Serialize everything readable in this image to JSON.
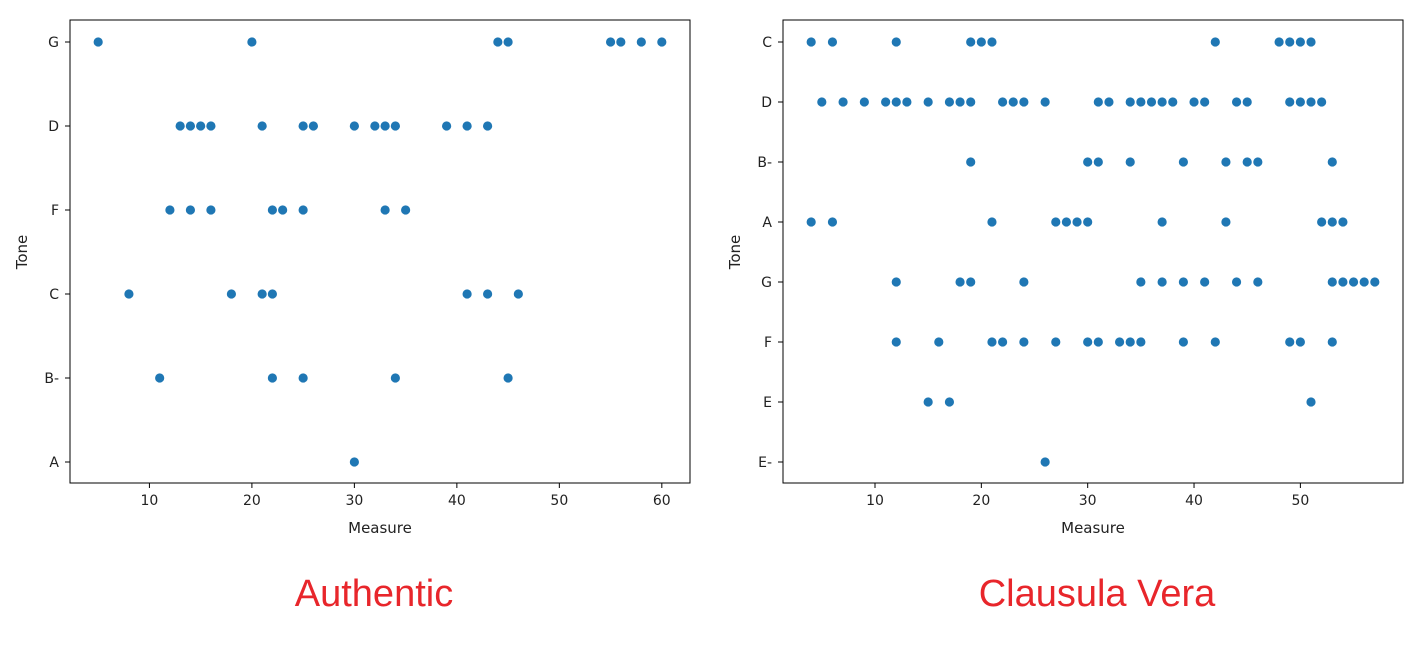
{
  "chart_data": [
    {
      "type": "scatter",
      "xlabel": "Measure",
      "ylabel": "Tone",
      "caption": "Authentic",
      "xlim": [
        2.25,
        62.75
      ],
      "x_ticks": [
        10,
        20,
        30,
        40,
        50,
        60
      ],
      "categories": [
        "G",
        "D",
        "F",
        "C",
        "B-",
        "A"
      ],
      "point_color": "#1f77b4",
      "caption_color": "#e8262b",
      "points": [
        {
          "x": 5,
          "y": "G"
        },
        {
          "x": 20,
          "y": "G"
        },
        {
          "x": 44,
          "y": "G"
        },
        {
          "x": 45,
          "y": "G"
        },
        {
          "x": 55,
          "y": "G"
        },
        {
          "x": 56,
          "y": "G"
        },
        {
          "x": 58,
          "y": "G"
        },
        {
          "x": 60,
          "y": "G"
        },
        {
          "x": 13,
          "y": "D"
        },
        {
          "x": 14,
          "y": "D"
        },
        {
          "x": 15,
          "y": "D"
        },
        {
          "x": 16,
          "y": "D"
        },
        {
          "x": 21,
          "y": "D"
        },
        {
          "x": 25,
          "y": "D"
        },
        {
          "x": 26,
          "y": "D"
        },
        {
          "x": 30,
          "y": "D"
        },
        {
          "x": 32,
          "y": "D"
        },
        {
          "x": 33,
          "y": "D"
        },
        {
          "x": 34,
          "y": "D"
        },
        {
          "x": 39,
          "y": "D"
        },
        {
          "x": 41,
          "y": "D"
        },
        {
          "x": 43,
          "y": "D"
        },
        {
          "x": 12,
          "y": "F"
        },
        {
          "x": 14,
          "y": "F"
        },
        {
          "x": 16,
          "y": "F"
        },
        {
          "x": 22,
          "y": "F"
        },
        {
          "x": 23,
          "y": "F"
        },
        {
          "x": 25,
          "y": "F"
        },
        {
          "x": 33,
          "y": "F"
        },
        {
          "x": 35,
          "y": "F"
        },
        {
          "x": 8,
          "y": "C"
        },
        {
          "x": 18,
          "y": "C"
        },
        {
          "x": 21,
          "y": "C"
        },
        {
          "x": 22,
          "y": "C"
        },
        {
          "x": 41,
          "y": "C"
        },
        {
          "x": 43,
          "y": "C"
        },
        {
          "x": 46,
          "y": "C"
        },
        {
          "x": 11,
          "y": "B-"
        },
        {
          "x": 22,
          "y": "B-"
        },
        {
          "x": 25,
          "y": "B-"
        },
        {
          "x": 34,
          "y": "B-"
        },
        {
          "x": 45,
          "y": "B-"
        },
        {
          "x": 30,
          "y": "A"
        }
      ]
    },
    {
      "type": "scatter",
      "xlabel": "Measure",
      "ylabel": "Tone",
      "caption": "Clausula Vera",
      "xlim": [
        1.35,
        59.65
      ],
      "x_ticks": [
        10,
        20,
        30,
        40,
        50
      ],
      "categories": [
        "C",
        "D",
        "B-",
        "A",
        "G",
        "F",
        "E",
        "E-"
      ],
      "point_color": "#1f77b4",
      "caption_color": "#e8262b",
      "points": [
        {
          "x": 4,
          "y": "C"
        },
        {
          "x": 6,
          "y": "C"
        },
        {
          "x": 12,
          "y": "C"
        },
        {
          "x": 19,
          "y": "C"
        },
        {
          "x": 20,
          "y": "C"
        },
        {
          "x": 21,
          "y": "C"
        },
        {
          "x": 42,
          "y": "C"
        },
        {
          "x": 48,
          "y": "C"
        },
        {
          "x": 49,
          "y": "C"
        },
        {
          "x": 50,
          "y": "C"
        },
        {
          "x": 51,
          "y": "C"
        },
        {
          "x": 5,
          "y": "D"
        },
        {
          "x": 7,
          "y": "D"
        },
        {
          "x": 9,
          "y": "D"
        },
        {
          "x": 11,
          "y": "D"
        },
        {
          "x": 12,
          "y": "D"
        },
        {
          "x": 13,
          "y": "D"
        },
        {
          "x": 15,
          "y": "D"
        },
        {
          "x": 17,
          "y": "D"
        },
        {
          "x": 18,
          "y": "D"
        },
        {
          "x": 19,
          "y": "D"
        },
        {
          "x": 22,
          "y": "D"
        },
        {
          "x": 23,
          "y": "D"
        },
        {
          "x": 24,
          "y": "D"
        },
        {
          "x": 26,
          "y": "D"
        },
        {
          "x": 31,
          "y": "D"
        },
        {
          "x": 32,
          "y": "D"
        },
        {
          "x": 34,
          "y": "D"
        },
        {
          "x": 35,
          "y": "D"
        },
        {
          "x": 36,
          "y": "D"
        },
        {
          "x": 37,
          "y": "D"
        },
        {
          "x": 38,
          "y": "D"
        },
        {
          "x": 40,
          "y": "D"
        },
        {
          "x": 41,
          "y": "D"
        },
        {
          "x": 44,
          "y": "D"
        },
        {
          "x": 45,
          "y": "D"
        },
        {
          "x": 49,
          "y": "D"
        },
        {
          "x": 50,
          "y": "D"
        },
        {
          "x": 51,
          "y": "D"
        },
        {
          "x": 52,
          "y": "D"
        },
        {
          "x": 19,
          "y": "B-"
        },
        {
          "x": 30,
          "y": "B-"
        },
        {
          "x": 31,
          "y": "B-"
        },
        {
          "x": 34,
          "y": "B-"
        },
        {
          "x": 39,
          "y": "B-"
        },
        {
          "x": 43,
          "y": "B-"
        },
        {
          "x": 45,
          "y": "B-"
        },
        {
          "x": 46,
          "y": "B-"
        },
        {
          "x": 53,
          "y": "B-"
        },
        {
          "x": 4,
          "y": "A"
        },
        {
          "x": 6,
          "y": "A"
        },
        {
          "x": 21,
          "y": "A"
        },
        {
          "x": 27,
          "y": "A"
        },
        {
          "x": 28,
          "y": "A"
        },
        {
          "x": 29,
          "y": "A"
        },
        {
          "x": 30,
          "y": "A"
        },
        {
          "x": 37,
          "y": "A"
        },
        {
          "x": 43,
          "y": "A"
        },
        {
          "x": 52,
          "y": "A"
        },
        {
          "x": 53,
          "y": "A"
        },
        {
          "x": 54,
          "y": "A"
        },
        {
          "x": 12,
          "y": "G"
        },
        {
          "x": 18,
          "y": "G"
        },
        {
          "x": 19,
          "y": "G"
        },
        {
          "x": 24,
          "y": "G"
        },
        {
          "x": 35,
          "y": "G"
        },
        {
          "x": 37,
          "y": "G"
        },
        {
          "x": 39,
          "y": "G"
        },
        {
          "x": 41,
          "y": "G"
        },
        {
          "x": 44,
          "y": "G"
        },
        {
          "x": 46,
          "y": "G"
        },
        {
          "x": 53,
          "y": "G"
        },
        {
          "x": 54,
          "y": "G"
        },
        {
          "x": 55,
          "y": "G"
        },
        {
          "x": 56,
          "y": "G"
        },
        {
          "x": 57,
          "y": "G"
        },
        {
          "x": 12,
          "y": "F"
        },
        {
          "x": 16,
          "y": "F"
        },
        {
          "x": 21,
          "y": "F"
        },
        {
          "x": 22,
          "y": "F"
        },
        {
          "x": 24,
          "y": "F"
        },
        {
          "x": 27,
          "y": "F"
        },
        {
          "x": 30,
          "y": "F"
        },
        {
          "x": 31,
          "y": "F"
        },
        {
          "x": 33,
          "y": "F"
        },
        {
          "x": 34,
          "y": "F"
        },
        {
          "x": 35,
          "y": "F"
        },
        {
          "x": 39,
          "y": "F"
        },
        {
          "x": 42,
          "y": "F"
        },
        {
          "x": 49,
          "y": "F"
        },
        {
          "x": 50,
          "y": "F"
        },
        {
          "x": 53,
          "y": "F"
        },
        {
          "x": 15,
          "y": "E"
        },
        {
          "x": 17,
          "y": "E"
        },
        {
          "x": 51,
          "y": "E"
        },
        {
          "x": 26,
          "y": "E-"
        }
      ]
    }
  ]
}
